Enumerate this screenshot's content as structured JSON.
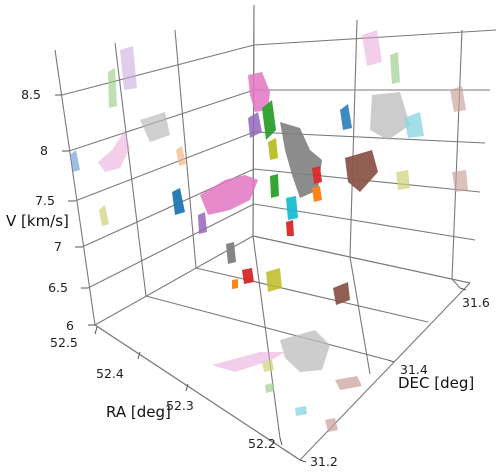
{
  "chart_data": {
    "type": "scatter",
    "subtype": "3d-isosurface",
    "title": "",
    "xlabel": "RA [deg]",
    "ylabel": "DEC [deg]",
    "zlabel": "V [km/s]",
    "xlim": [
      52.15,
      52.52
    ],
    "ylim": [
      31.15,
      31.65
    ],
    "zlim": [
      6.0,
      8.75
    ],
    "xticks": [
      "52.2",
      "52.3",
      "52.4",
      "52.5"
    ],
    "yticks": [
      "31.2",
      "31.4",
      "31.6"
    ],
    "zticks": [
      "6",
      "6.5",
      "7",
      "7.5",
      "8",
      "8.5"
    ],
    "grid": true,
    "series": [
      {
        "color": "#1f77b4",
        "points": [
          [
            52.44,
            31.22,
            7.1
          ],
          [
            52.46,
            31.3,
            6.8
          ]
        ]
      },
      {
        "color": "#ff7f0e",
        "points": [
          [
            52.3,
            31.32,
            6.2
          ],
          [
            52.22,
            31.46,
            7.2
          ]
        ]
      },
      {
        "color": "#2ca02c",
        "points": [
          [
            52.28,
            31.42,
            7.8
          ],
          [
            52.3,
            31.45,
            7.2
          ]
        ]
      },
      {
        "color": "#d62728",
        "points": [
          [
            52.26,
            31.32,
            6.3
          ],
          [
            52.25,
            31.44,
            7.0
          ],
          [
            52.22,
            31.46,
            7.3
          ]
        ]
      },
      {
        "color": "#9467bd",
        "points": [
          [
            52.38,
            31.35,
            7.9
          ],
          [
            52.44,
            31.28,
            7.0
          ]
        ]
      },
      {
        "color": "#8c564b",
        "points": [
          [
            52.18,
            31.55,
            7.5
          ],
          [
            52.2,
            31.55,
            6.3
          ]
        ]
      },
      {
        "color": "#e377c2",
        "points": [
          [
            52.37,
            31.36,
            8.2
          ],
          [
            52.45,
            31.24,
            7.5
          ],
          [
            52.4,
            31.32,
            7.2
          ]
        ]
      },
      {
        "color": "#7f7f7f",
        "points": [
          [
            52.3,
            31.4,
            7.9
          ],
          [
            52.26,
            31.45,
            7.5
          ],
          [
            52.34,
            31.33,
            6.9
          ]
        ]
      },
      {
        "color": "#bcbd22",
        "points": [
          [
            52.31,
            31.4,
            7.7
          ],
          [
            52.29,
            31.34,
            6.5
          ]
        ]
      },
      {
        "color": "#17becf",
        "points": [
          [
            52.26,
            31.43,
            7.4
          ]
        ]
      }
    ]
  }
}
